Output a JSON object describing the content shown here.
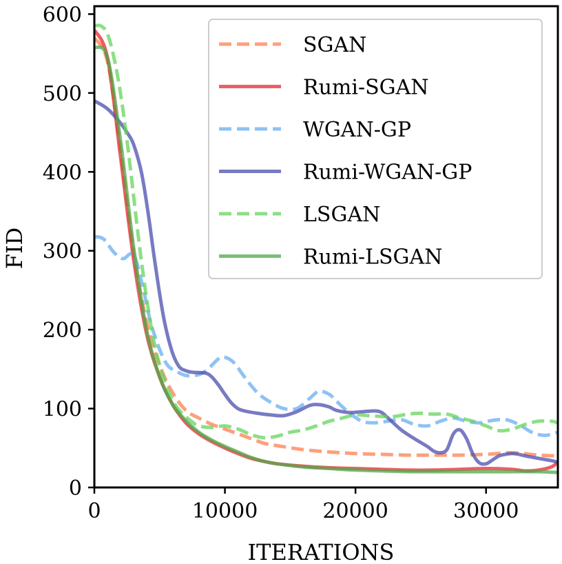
{
  "chart_data": {
    "type": "line",
    "title": "",
    "xlabel": "ITERATIONS",
    "ylabel": "FID",
    "xlim": [
      0,
      35500
    ],
    "ylim": [
      0,
      610
    ],
    "xticks": [
      0,
      10000,
      20000,
      30000
    ],
    "yticks": [
      0,
      100,
      200,
      300,
      400,
      500,
      600
    ],
    "grid": false,
    "legend_position": "top-right",
    "series": [
      {
        "name": "SGAN",
        "color": "#ff7f50",
        "dash": "dashed",
        "x": [
          0,
          1000,
          2000,
          3000,
          4000,
          5000,
          6000,
          7000,
          8000,
          9000,
          10000,
          11000,
          12000,
          13000,
          14000,
          16000,
          18000,
          20000,
          22000,
          24000,
          26000,
          28000,
          30000,
          32000,
          34000,
          35500
        ],
        "y": [
          570,
          540,
          430,
          300,
          210,
          155,
          120,
          98,
          88,
          80,
          74,
          68,
          62,
          56,
          53,
          48,
          45,
          43,
          42,
          41,
          41,
          41,
          42,
          44,
          41,
          40
        ]
      },
      {
        "name": "Rumi-SGAN",
        "color": "#e8282f",
        "dash": "solid",
        "x": [
          0,
          1000,
          2000,
          3000,
          4000,
          5000,
          6000,
          7000,
          8000,
          9000,
          10000,
          11000,
          12000,
          13000,
          14000,
          16000,
          18000,
          20000,
          22000,
          24000,
          26000,
          28000,
          30000,
          32000,
          33000,
          34000,
          35000,
          35500
        ],
        "y": [
          580,
          545,
          420,
          290,
          195,
          140,
          105,
          82,
          68,
          58,
          50,
          43,
          37,
          33,
          30,
          27,
          25,
          24,
          23,
          22,
          22,
          23,
          24,
          23,
          21,
          22,
          26,
          32
        ]
      },
      {
        "name": "WGAN-GP",
        "color": "#6aaef0",
        "dash": "dashed",
        "x": [
          0,
          700,
          1500,
          2200,
          3000,
          3700,
          4300,
          5000,
          5600,
          6200,
          7000,
          8000,
          8700,
          9500,
          10000,
          10700,
          11500,
          12500,
          13500,
          14500,
          15500,
          16500,
          17200,
          18000,
          18500,
          19500,
          20500,
          21500,
          22500,
          23500,
          24500,
          25500,
          26500,
          27500,
          28500,
          29500,
          30500,
          31500,
          32500,
          33500,
          34500,
          35500
        ],
        "y": [
          318,
          315,
          298,
          290,
          295,
          255,
          210,
          175,
          155,
          148,
          142,
          143,
          150,
          163,
          165,
          158,
          140,
          120,
          108,
          100,
          100,
          113,
          122,
          118,
          110,
          95,
          84,
          82,
          84,
          86,
          80,
          78,
          84,
          88,
          84,
          82,
          85,
          86,
          80,
          70,
          66,
          70
        ]
      },
      {
        "name": "Rumi-WGAN-GP",
        "color": "#4b4dae",
        "dash": "solid",
        "x": [
          0,
          1000,
          2000,
          2500,
          3000,
          3600,
          4100,
          4600,
          5100,
          5500,
          6000,
          6500,
          7000,
          7500,
          8500,
          9000,
          9500,
          10000,
          10500,
          11000,
          11500,
          12500,
          13500,
          14500,
          15500,
          16500,
          17200,
          18000,
          18500,
          19500,
          20500,
          21500,
          22000,
          22500,
          23500,
          24500,
          25500,
          26000,
          26500,
          27000,
          27500,
          28000,
          28500,
          29000,
          29500,
          30000,
          30500,
          31000,
          31500,
          32000,
          32500,
          33000,
          34000,
          35000,
          35500
        ],
        "y": [
          490,
          480,
          462,
          450,
          435,
          400,
          350,
          290,
          235,
          200,
          170,
          153,
          148,
          146,
          145,
          140,
          130,
          118,
          107,
          100,
          97,
          94,
          92,
          91,
          96,
          104,
          105,
          102,
          98,
          95,
          96,
          97,
          95,
          88,
          73,
          62,
          52,
          46,
          44,
          48,
          68,
          73,
          62,
          42,
          31,
          30,
          35,
          40,
          42,
          43,
          42,
          40,
          37,
          34,
          32
        ]
      },
      {
        "name": "LSGAN",
        "color": "#66d45c",
        "dash": "dashed",
        "x": [
          0,
          500,
          1000,
          1500,
          2000,
          2500,
          3000,
          3500,
          4000,
          4500,
          5000,
          5500,
          6000,
          6500,
          7000,
          7500,
          8000,
          9000,
          10000,
          11000,
          12000,
          13000,
          14000,
          15000,
          16000,
          17000,
          18000,
          19000,
          20000,
          21000,
          22000,
          23000,
          24000,
          25000,
          26000,
          27000,
          28000,
          29000,
          30000,
          31000,
          32000,
          33000,
          34000,
          35000,
          35500
        ],
        "y": [
          585,
          585,
          575,
          545,
          500,
          440,
          370,
          300,
          240,
          190,
          155,
          130,
          110,
          98,
          90,
          83,
          78,
          76,
          78,
          74,
          67,
          63,
          65,
          70,
          73,
          78,
          84,
          88,
          92,
          91,
          90,
          90,
          93,
          94,
          93,
          93,
          88,
          84,
          78,
          72,
          74,
          80,
          84,
          84,
          82
        ]
      },
      {
        "name": "Rumi-LSGAN",
        "color": "#4fa94a",
        "dash": "solid",
        "x": [
          0,
          1000,
          2000,
          3000,
          4000,
          5000,
          6000,
          7000,
          8000,
          9000,
          10000,
          11000,
          12000,
          13000,
          14000,
          16000,
          18000,
          20000,
          22000,
          24000,
          26000,
          28000,
          30000,
          32000,
          34000,
          35500
        ],
        "y": [
          558,
          545,
          440,
          305,
          200,
          140,
          105,
          85,
          70,
          60,
          52,
          45,
          38,
          33,
          30,
          26,
          24,
          22,
          21,
          20,
          20,
          20,
          20,
          20,
          20,
          19
        ]
      }
    ]
  }
}
